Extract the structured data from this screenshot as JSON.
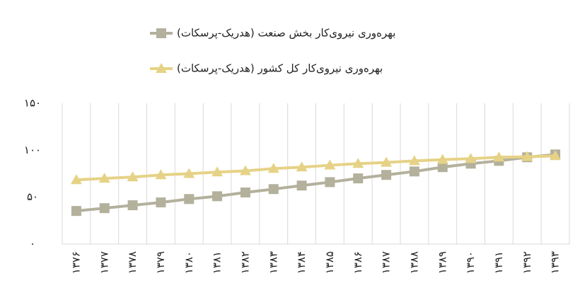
{
  "chart_data": {
    "type": "line",
    "categories": [
      "۱۳۷۶",
      "۱۳۷۷",
      "۱۳۷۸",
      "۱۳۷۹",
      "۱۳۸۰",
      "۱۳۸۱",
      "۱۳۸۲",
      "۱۳۸۳",
      "۱۳۸۴",
      "۱۳۸۵",
      "۱۳۸۶",
      "۱۳۸۷",
      "۱۳۸۸",
      "۱۳۸۹",
      "۱۳۹۰",
      "۱۳۹۱",
      "۱۳۹۲",
      "۱۳۹۳"
    ],
    "series": [
      {
        "name": "بهره‌وری نیروی‌کار بخش صنعت (هدریک-پرسکات)",
        "color": "#b3b09c",
        "marker": "square",
        "values": [
          35.3,
          38.3,
          41.4,
          44.4,
          48,
          51,
          55,
          58.6,
          62.4,
          66,
          70,
          73.7,
          77.4,
          82,
          85.7,
          88.7,
          92.5,
          95.5
        ]
      },
      {
        "name": "بهره‌وری نیروی‌کار کل کشور (هدریک-پرسکات)",
        "color": "#e6d286",
        "marker": "triangle",
        "values": [
          68.4,
          70,
          71.4,
          73.7,
          75,
          76.7,
          78,
          80.5,
          82,
          84,
          85.7,
          87,
          88.7,
          90,
          91,
          92.5,
          93,
          94
        ]
      }
    ],
    "ylim": [
      0,
      150
    ],
    "yticks": [
      {
        "value": 0,
        "label": "۰"
      },
      {
        "value": 50,
        "label": "۵۰"
      },
      {
        "value": 100,
        "label": "۱۰۰"
      },
      {
        "value": 150,
        "label": "۱۵۰"
      }
    ],
    "grid": true,
    "legend": "top"
  }
}
